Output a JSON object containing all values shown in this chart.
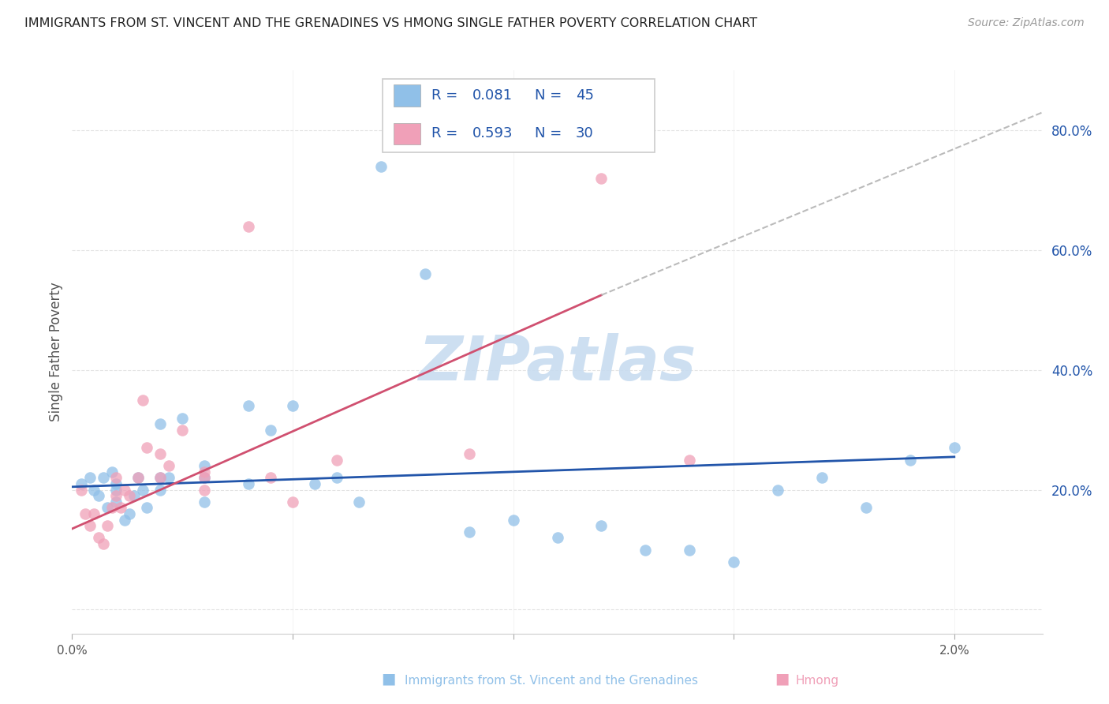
{
  "title": "IMMIGRANTS FROM ST. VINCENT AND THE GRENADINES VS HMONG SINGLE FATHER POVERTY CORRELATION CHART",
  "source": "Source: ZipAtlas.com",
  "ylabel": "Single Father Poverty",
  "right_yticklabels": [
    "",
    "20.0%",
    "40.0%",
    "60.0%",
    "80.0%"
  ],
  "right_ytick_vals": [
    0.0,
    0.2,
    0.4,
    0.6,
    0.8
  ],
  "legend_r1": "R = 0.081",
  "legend_n1": "N = 45",
  "legend_r2": "R = 0.593",
  "legend_n2": "N = 30",
  "blue_scatter_x": [
    0.0002,
    0.0004,
    0.0005,
    0.0006,
    0.0007,
    0.0008,
    0.0009,
    0.001,
    0.001,
    0.001,
    0.0012,
    0.0013,
    0.0014,
    0.0015,
    0.0016,
    0.0017,
    0.002,
    0.002,
    0.002,
    0.0022,
    0.0025,
    0.003,
    0.003,
    0.003,
    0.004,
    0.004,
    0.0045,
    0.005,
    0.0055,
    0.006,
    0.0065,
    0.007,
    0.008,
    0.009,
    0.01,
    0.011,
    0.012,
    0.013,
    0.014,
    0.015,
    0.016,
    0.017,
    0.018,
    0.019,
    0.02
  ],
  "blue_scatter_y": [
    0.21,
    0.22,
    0.2,
    0.19,
    0.22,
    0.17,
    0.23,
    0.18,
    0.2,
    0.21,
    0.15,
    0.16,
    0.19,
    0.22,
    0.2,
    0.17,
    0.2,
    0.22,
    0.31,
    0.22,
    0.32,
    0.22,
    0.24,
    0.18,
    0.21,
    0.34,
    0.3,
    0.34,
    0.21,
    0.22,
    0.18,
    0.74,
    0.56,
    0.13,
    0.15,
    0.12,
    0.14,
    0.1,
    0.1,
    0.08,
    0.2,
    0.22,
    0.17,
    0.25,
    0.27
  ],
  "pink_scatter_x": [
    0.0002,
    0.0003,
    0.0004,
    0.0005,
    0.0006,
    0.0007,
    0.0008,
    0.0009,
    0.001,
    0.001,
    0.0011,
    0.0012,
    0.0013,
    0.0015,
    0.0016,
    0.0017,
    0.002,
    0.002,
    0.0022,
    0.0025,
    0.003,
    0.003,
    0.003,
    0.004,
    0.0045,
    0.005,
    0.006,
    0.009,
    0.012,
    0.014
  ],
  "pink_scatter_y": [
    0.2,
    0.16,
    0.14,
    0.16,
    0.12,
    0.11,
    0.14,
    0.17,
    0.19,
    0.22,
    0.17,
    0.2,
    0.19,
    0.22,
    0.35,
    0.27,
    0.22,
    0.26,
    0.24,
    0.3,
    0.2,
    0.22,
    0.23,
    0.64,
    0.22,
    0.18,
    0.25,
    0.26,
    0.72,
    0.25
  ],
  "blue_line_x": [
    0.0,
    0.02
  ],
  "blue_line_y": [
    0.205,
    0.255
  ],
  "pink_line_x": [
    0.0,
    0.012
  ],
  "pink_line_y": [
    0.135,
    0.525
  ],
  "dash_line_x": [
    0.012,
    0.022
  ],
  "dash_line_y": [
    0.525,
    0.83
  ],
  "blue_color": "#90C0E8",
  "pink_color": "#F0A0B8",
  "blue_line_color": "#2255AA",
  "pink_line_color": "#D05070",
  "dash_line_color": "#BBBBBB",
  "legend_text_color": "#2255AA",
  "watermark_color": "#C8DCF0",
  "background_color": "#ffffff",
  "grid_color": "#DDDDDD",
  "xlim": [
    0.0,
    0.022
  ],
  "ylim": [
    -0.04,
    0.9
  ],
  "bottom_label1": "Immigrants from St. Vincent and the Grenadines",
  "bottom_label2": "Hmong"
}
